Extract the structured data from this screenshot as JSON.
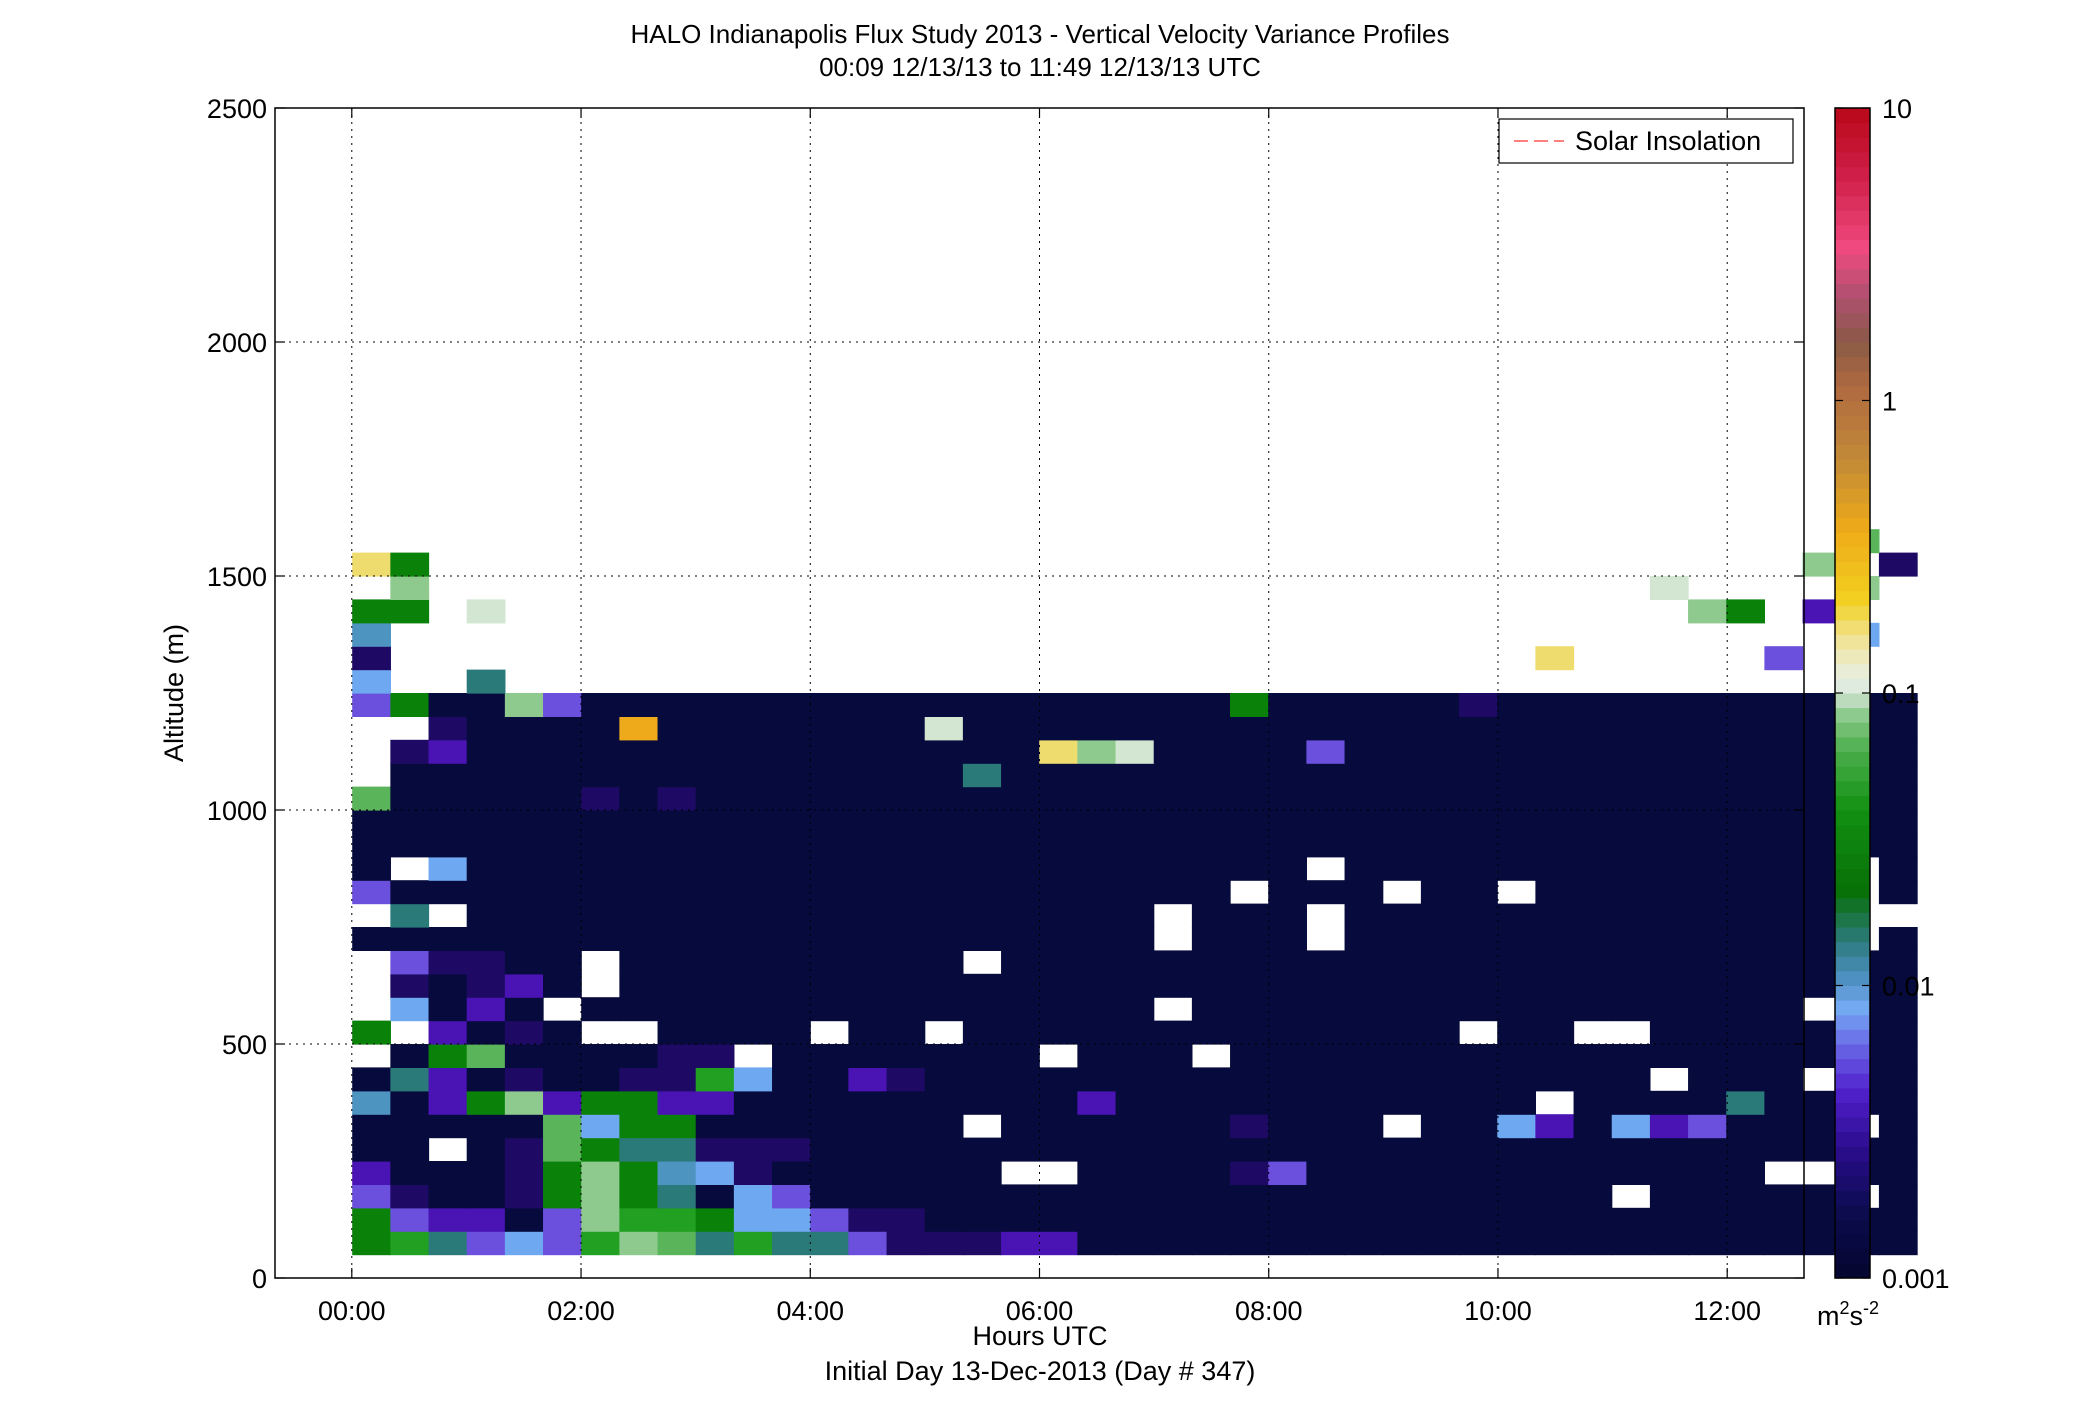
{
  "chart_data": {
    "type": "heatmap",
    "title": "HALO Indianapolis Flux Study 2013 - Vertical Velocity Variance Profiles",
    "subtitle": "00:09 12/13/13 to 11:49 12/13/13  UTC",
    "xlabel": "Hours UTC",
    "xlabel2": "Initial Day 13-Dec-2013 (Day # 347)",
    "ylabel": "Altitude (m)",
    "xlim_hours": [
      -0.67,
      12.67
    ],
    "ylim": [
      0,
      2500
    ],
    "x_ticks": [
      0,
      2,
      4,
      6,
      8,
      10,
      12
    ],
    "x_tick_labels": [
      "00:00",
      "02:00",
      "04:00",
      "06:00",
      "08:00",
      "10:00",
      "12:00"
    ],
    "y_ticks": [
      0,
      500,
      1000,
      1500,
      2000,
      2500
    ],
    "y_tick_labels": [
      "0",
      "500",
      "1000",
      "1500",
      "2000",
      "2500"
    ],
    "grid": true,
    "legend": {
      "position": "top-right",
      "entries": [
        {
          "label": "Solar Insolation",
          "color": "#ff8080",
          "style": "dashed"
        }
      ]
    },
    "colorbar": {
      "scale": "log",
      "range": [
        0.001,
        10
      ],
      "tick_values": [
        0.001,
        0.01,
        0.1,
        1,
        10
      ],
      "tick_labels": [
        "0.001",
        "0.01",
        "0.1",
        "1",
        "10"
      ],
      "units_base": "m",
      "units_exp1": "2",
      "units_mid": "s",
      "units_exp2": "-2"
    },
    "cell_width_hours": 0.333,
    "cell_height_m": 50,
    "first_cell_hour": 0.17,
    "first_cell_altitude": 75,
    "palette": {
      "N": "#060a3c",
      "D": "#1e0a64",
      "P": "#4a14b4",
      "V": "#6a50dc",
      "L": "#6ea8f0",
      "T": "#4e94c0",
      "Q": "#2a7a7a",
      "G": "#0a820a",
      "M": "#22a022",
      "H": "#5ab45a",
      "K": "#8ec98e",
      "W": "#d2e6d2",
      "Y": "#eedc6e",
      "O": "#eeaa1a"
    },
    "grid_rows": [
      "GMQVLVMKHQMQQVDDDPPNNNNNNNNNNNNNNNNNNNNNN",
      "GVPPNVKMMGLLVDDNNNNNNNNNNNNNNNNNNNNNNNNNN",
      "VDNNDGKGQNLVNNNNNNNNNNNNNNNNNNNNN.NNNNN.N",
      "PNNNDGKGTLDNNNNNNN.NNNNDVNNNNNNNNNNNNN.NN",
      "NN.NDHGQQDDDNNNNNNNNNNNNNNNNNNNNNNNNNNNNN",
      "NNNNNHLGGNNNNNNN.NNNNNNDNNN.NNLPNLPVNNN.N",
      "TNPGKPGGPPNNNNNNNNNPNNNNNNNNNNN.NNNNQNNNN",
      "NQPNDNNDDMLNNPDNNNNNNNNNNNNNNNNNNN.NNN.NN",
      ".NGHNNNNDD.NNNNNNN.NNN.NNNNNNNNNNNNNNNNNN",
      "G.PNDN..NNNN.NN.NNNNNNNNNNNNN.NN..NNNNNNN",
      ".LNPN.NNNNNNNNNNNNNNN.NNNNNNNNNNNNNNNN.NN",
      ".DNDPN.NNNNNNNNNNNNNNNNNNNNNNNNNNNNNNNNNN",
      ".VDDNN.NNNNNNNNN.NNNNNNNNNNNNNNNNNNNNNNNN",
      "NNNNNNNNNNNNNNNNNNNNN.NNN.NNNNNNNNNNNNN.N",
      ".Q.NNNNNNNNNNNNNNNNNN.NNN.NNNNNNNNNNNNN..",
      "VNNNNNNNNNNNNNNNNNNNNNN.NNN.NN.NNNNNNNN.N",
      "N.LNNNNNNNNNNNNNNNNNNNNNN.NNNNNNNNNNNNN.N",
      "NNNNNNNNNNNNNNNNNNNNNNNNNNNNNNNNNNNNNNNNN",
      "NNNNNNNNNNNNNNNNNNNNNNNNNNNNNNNNNNNNNNNNN",
      "HNNNNNDNDNNNNNNNNNNNNNNNNNNNNNNNNNNNNNNNN",
      ".NNNNNNNNNNNNNNNQNNNNNNNNNNNNNNNNNNNNNNNN",
      ".DPNNNNNNNNNNNNNNNYKWNNNNVNNNNNNNNNNNNNNN",
      "..DNNNNONNNNNNNWNNNNNNNNNNNNNNNNNNNNNNNNN",
      "VGNNKVNNNNNNNNNNNNNNNNNGNNNNNDNNNNNNNNNNN",
      "LNNQNNNNNNNNNNNNNNNNNNNNNNNNNNNNNNNNNNNNN",
      "DNNNNNNNNNNNNNNNNNNNNNNNNNNNNNNYNNNNNVNNN",
      "TNNNNNNNNNNNNNNNNNNNNNNNNNNNNNNNNNNNNNNLN",
      "GGNWNNNNNNNNNNNNNNNNNNNNNNNNNNNNNNNKGNPNN",
      "NKNNNNNNNNNNNNNNNNNNNNNNNNNNNNNNNNWNNNNKN",
      "YGNNNNNNNNNNNNNNNNNNNNNNNNNNNNNNNNNNNNKND",
      "NNNNNNNNNNNNNNNNNNNNNNNNNNNNNNNNNNNNNNNHN"
    ],
    "grid_mask": [
      "11111111111111111111111111111111111111111",
      "11111111111111111111111111111111111111111",
      "11111111111111111111111111111111101111101",
      "11111111111111111011111111111111111110111",
      "11011111111111111111111111111111111111111",
      "11111111111111111111111111111111111111101",
      "11111111111111111111111111111110111111111",
      "11111111111111111111111111111111110111011",
      "01111111110111111101110111111111111111111",
      "10111100111101101111111111111011001111111",
      "01111011111111111111101111111111111111011",
      "01111101111111111111111111111111111111111",
      "01111101111111110111111111111111111111111",
      "11111111111111111111101110111111111111101",
      "01011111111111111111101110111111111111100",
      "11111111111111111111111011101101111111101",
      "10111111111111111111111110111111111111101",
      "11111111111111111111111111111111111111111",
      "11111111111111111111111111111111111111111",
      "11111111111111111111111111111111111111111",
      "01111111111111111111111111111111111111111",
      "01111111111111111111111111111111111111111",
      "00111111111111111111111111111111111111111",
      "11111111111111111111111111111111111111111",
      "10010000000000000000000000000000000000000",
      "10000000000000000000000000000001000001000",
      "10000000000000000000000000000000000000010",
      "11010000000000000000000000000000000110100",
      "01000000000000000000000000000000001000010",
      "11000000000000000000000000000000000000101",
      "00000000000000000000000000000000000000010"
    ]
  }
}
